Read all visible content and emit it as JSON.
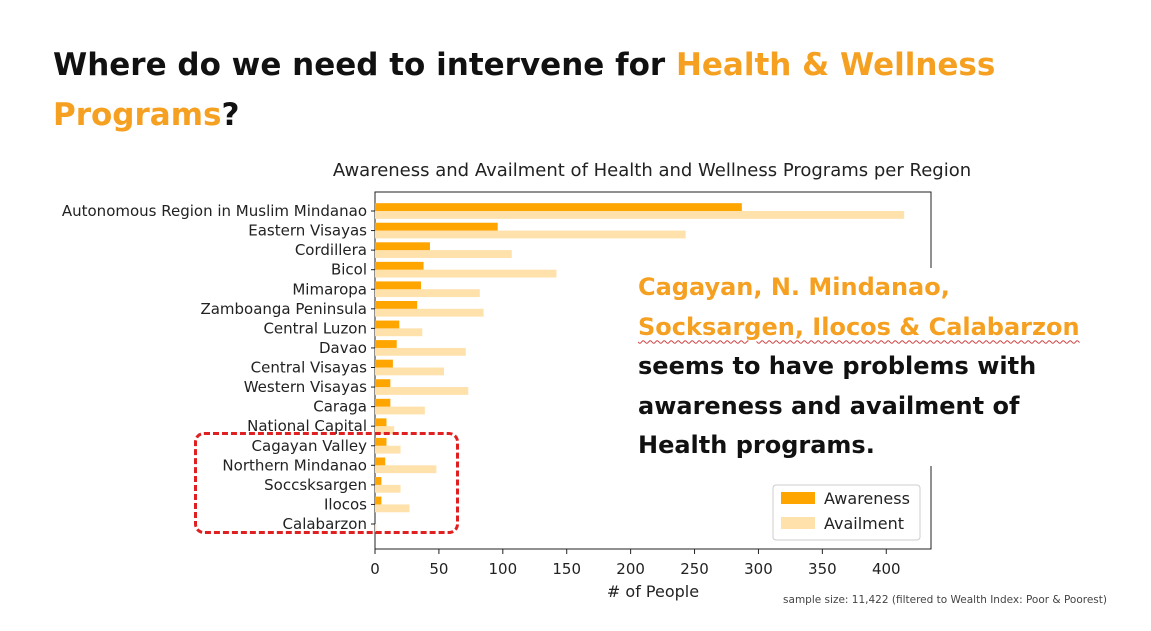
{
  "slide": {
    "title_prefix": "Where do we need to intervene for ",
    "title_highlight_1": "Health & Wellness",
    "title_highlight_2": "Programs",
    "title_suffix": "?",
    "callout_highlight_1": "Cagayan, N. Mindanao,",
    "callout_highlight_2": "Socksargen, Ilocos & Calabarzon",
    "callout_line_3": "seems to have problems with",
    "callout_line_4": "awareness and availment of",
    "callout_line_5": "Health programs.",
    "footnote": "sample size: 11,422 (filtered to Wealth Index: Poor & Poorest)"
  },
  "colors": {
    "awareness": "#ffa500",
    "availment": "#ffe1ac",
    "accent": "#f5a020",
    "highlight_box": "#e02020"
  },
  "chart_data": {
    "type": "bar",
    "orientation": "horizontal",
    "title": "Awareness and Availment of Health and Wellness Programs per Region",
    "xlabel": "# of People",
    "ylabel": "",
    "xlim": [
      0,
      435
    ],
    "xticks": [
      0,
      50,
      100,
      150,
      200,
      250,
      300,
      350,
      400
    ],
    "grid": false,
    "legend_position": "bottom-right",
    "categories": [
      "Autonomous Region in Muslim Mindanao",
      "Eastern Visayas",
      "Cordillera",
      "Bicol",
      "Mimaropa",
      "Zamboanga Peninsula",
      "Central Luzon",
      "Davao",
      "Central Visayas",
      "Western Visayas",
      "Caraga",
      "National Capital",
      "Cagayan Valley",
      "Northern Mindanao",
      "Soccsksargen",
      "Ilocos",
      "Calabarzon"
    ],
    "series": [
      {
        "name": "Awareness",
        "values": [
          287,
          96,
          43,
          38,
          36,
          33,
          19,
          17,
          14,
          12,
          12,
          9,
          9,
          8,
          5,
          5,
          0
        ]
      },
      {
        "name": "Availment",
        "values": [
          414,
          243,
          107,
          142,
          82,
          85,
          37,
          71,
          54,
          73,
          39,
          15,
          20,
          48,
          20,
          27,
          1
        ]
      }
    ]
  }
}
